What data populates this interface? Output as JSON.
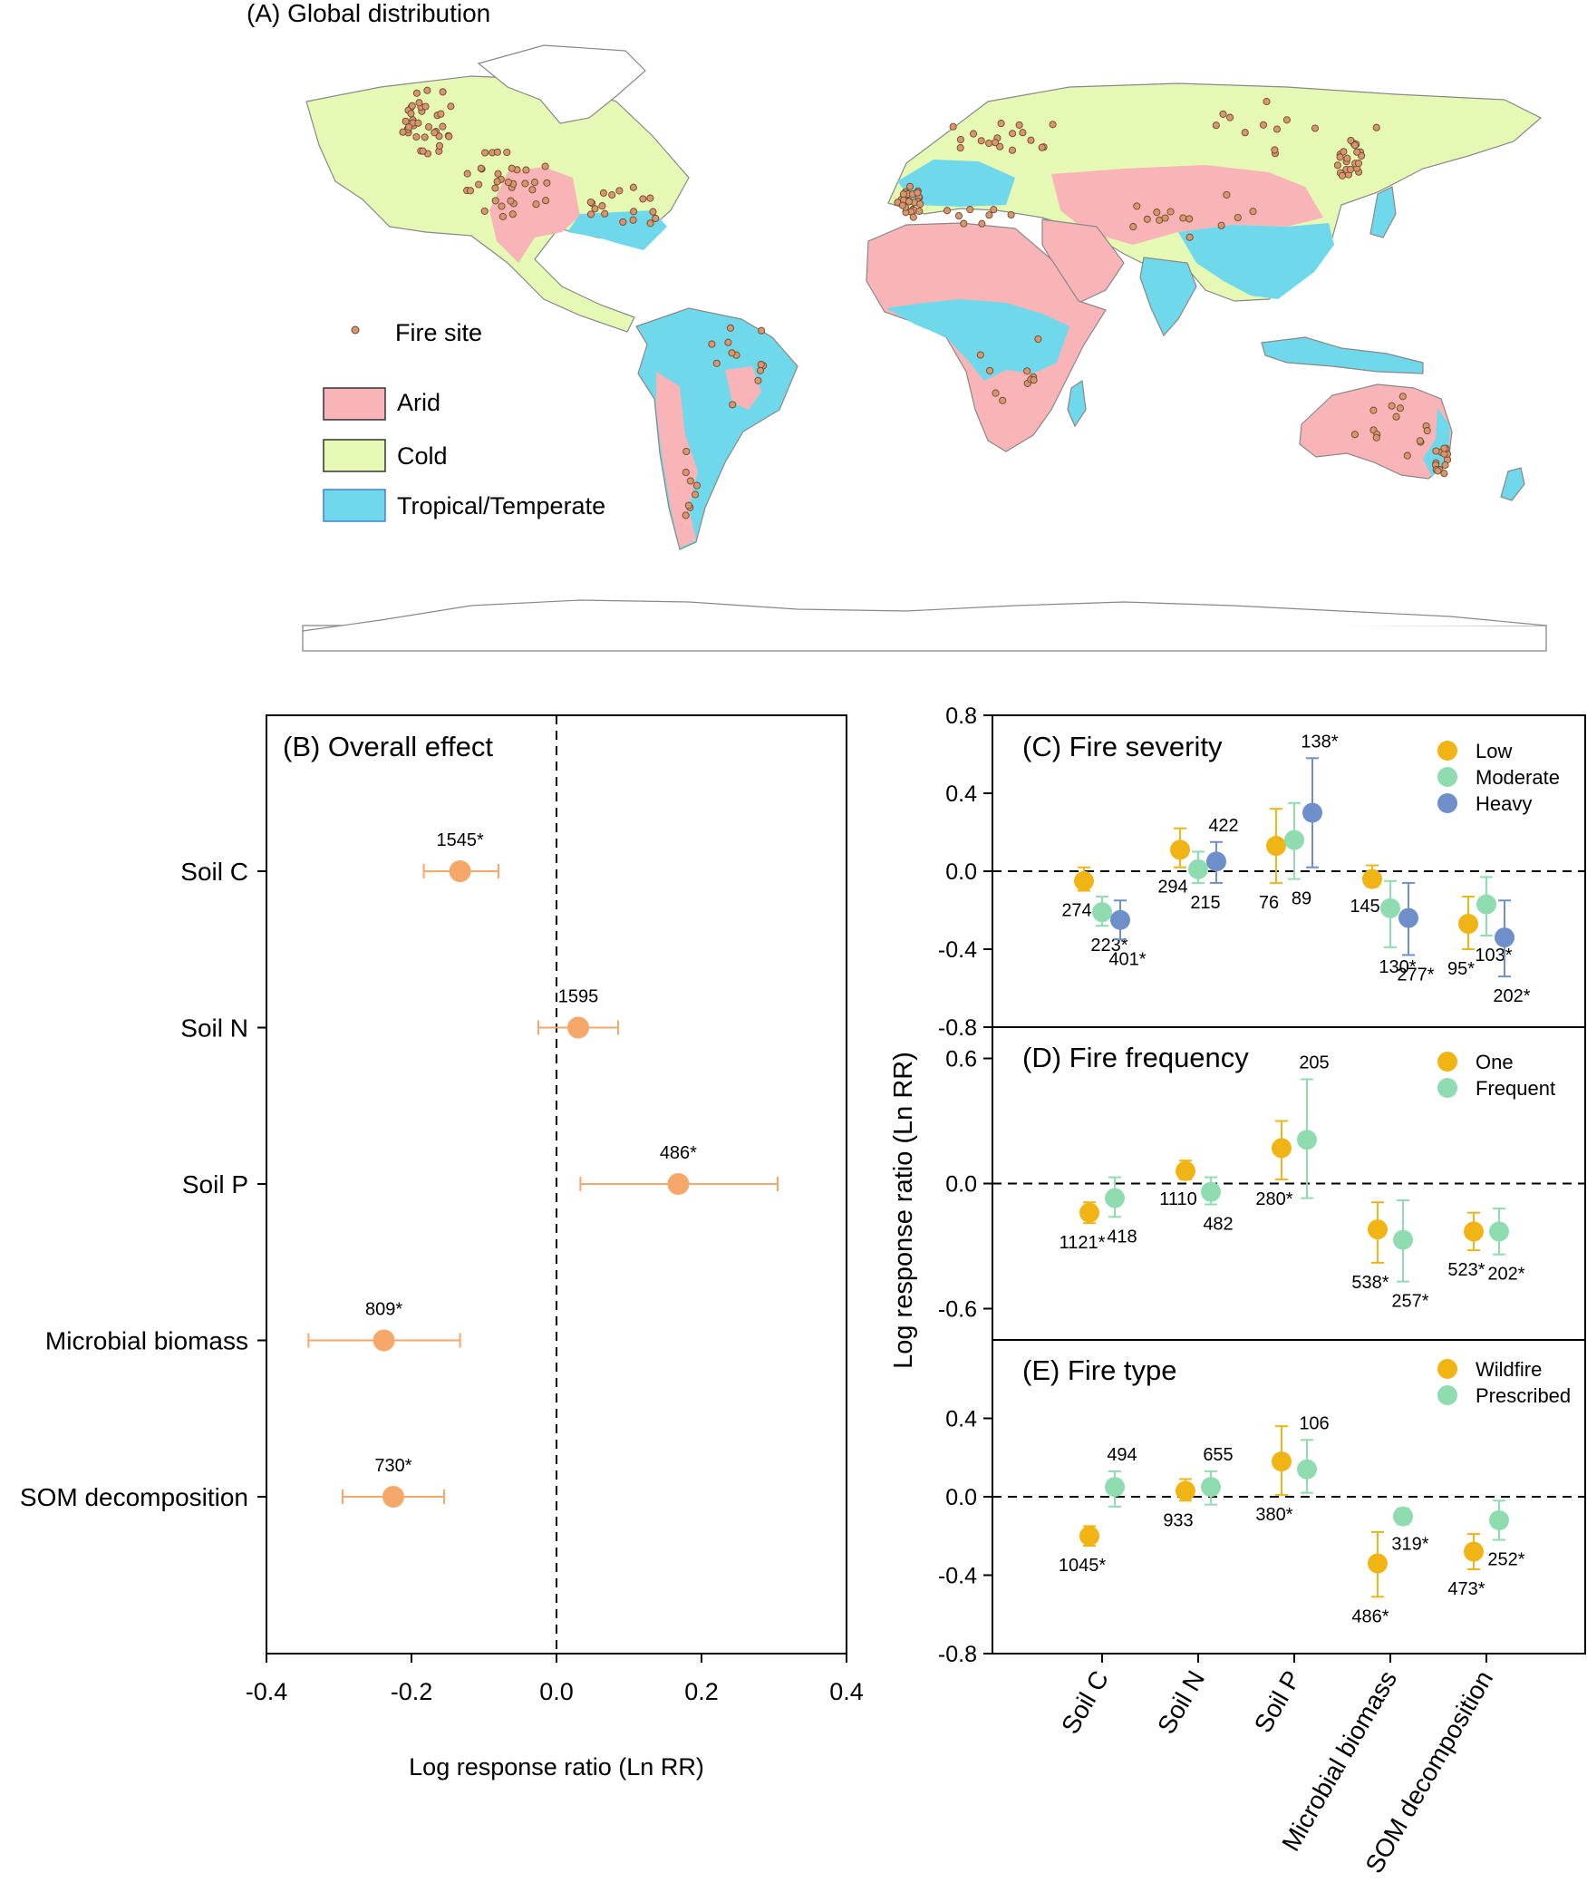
{
  "colors": {
    "arid": "#f9b4b8",
    "cold": "#e6f9b4",
    "tropical": "#6fd8ea",
    "fire_dot": "#d9956c",
    "overall_point": "#f6a76a",
    "low": "#f0b414",
    "moderate": "#8edcb0",
    "heavy": "#6f8fca"
  },
  "map": {
    "title": "(A) Global distribution",
    "legend": {
      "fire_site": "Fire site",
      "arid": "Arid",
      "cold": "Cold",
      "tropical": "Tropical/Temperate"
    }
  },
  "chart_data": [
    {
      "panel": "B",
      "type": "scatter",
      "title": "(B) Overall effect",
      "xlabel": "Log response ratio (Ln RR)",
      "xlim": [
        -0.4,
        0.4
      ],
      "xticks": [
        "-0.4",
        "-0.2",
        "0.0",
        "0.2",
        "0.4"
      ],
      "categories": [
        "Soil C",
        "Soil N",
        "Soil P",
        "Microbial biomass",
        "SOM decomposition"
      ],
      "series": [
        {
          "name": "Overall",
          "values": [
            -0.133,
            0.03,
            0.168,
            -0.238,
            -0.225
          ],
          "lower": [
            -0.183,
            -0.025,
            0.033,
            -0.342,
            -0.295
          ],
          "upper": [
            -0.08,
            0.085,
            0.305,
            -0.133,
            -0.155
          ],
          "labels": [
            "1545*",
            "1595",
            "486*",
            "809*",
            "730*"
          ]
        }
      ]
    },
    {
      "panel": "C",
      "type": "scatter",
      "title": "(C) Fire severity",
      "ylim": [
        -0.8,
        0.8
      ],
      "yticks": [
        "0.8",
        "0.4",
        "0.0",
        "-0.4",
        "-0.8"
      ],
      "categories": [
        "Soil C",
        "Soil N",
        "Soil P",
        "Microbial biomass",
        "SOM decomposition"
      ],
      "series": [
        {
          "name": "Low",
          "values": [
            -0.05,
            0.11,
            0.13,
            -0.04,
            -0.27
          ],
          "lower": [
            -0.1,
            0.02,
            -0.06,
            -0.08,
            -0.4
          ],
          "upper": [
            0.02,
            0.22,
            0.32,
            0.03,
            -0.13
          ],
          "labels": [
            "274",
            "294",
            "76",
            "145",
            "95*"
          ]
        },
        {
          "name": "Moderate",
          "values": [
            -0.21,
            0.01,
            0.16,
            -0.19,
            -0.17
          ],
          "lower": [
            -0.28,
            -0.06,
            -0.04,
            -0.39,
            -0.33
          ],
          "upper": [
            -0.13,
            0.1,
            0.35,
            -0.05,
            -0.03
          ],
          "labels": [
            "223*",
            "215",
            "89",
            "130*",
            "103*"
          ]
        },
        {
          "name": "Heavy",
          "values": [
            -0.25,
            0.05,
            0.3,
            -0.24,
            -0.34
          ],
          "lower": [
            -0.35,
            -0.06,
            0.02,
            -0.43,
            -0.54
          ],
          "upper": [
            -0.15,
            0.15,
            0.58,
            -0.06,
            -0.15
          ],
          "labels": [
            "401*",
            "422",
            "138*",
            "277*",
            "202*"
          ]
        }
      ]
    },
    {
      "panel": "D",
      "type": "scatter",
      "title": "(D) Fire frequency",
      "ylim": [
        -0.75,
        0.75
      ],
      "yticks": [
        "0.6",
        "0.0",
        "-0.6"
      ],
      "categories": [
        "Soil C",
        "Soil N",
        "Soil P",
        "Microbial biomass",
        "SOM decomposition"
      ],
      "series": [
        {
          "name": "One",
          "values": [
            -0.14,
            0.06,
            0.17,
            -0.22,
            -0.23
          ],
          "lower": [
            -0.19,
            0.02,
            0.02,
            -0.38,
            -0.32
          ],
          "upper": [
            -0.09,
            0.11,
            0.3,
            -0.09,
            -0.14
          ],
          "labels": [
            "1121*",
            "1110",
            "280*",
            "538*",
            "523*"
          ]
        },
        {
          "name": "Frequent",
          "values": [
            -0.07,
            -0.04,
            0.21,
            -0.27,
            -0.23
          ],
          "lower": [
            -0.16,
            -0.1,
            -0.07,
            -0.47,
            -0.34
          ],
          "upper": [
            0.03,
            0.03,
            0.5,
            -0.08,
            -0.12
          ],
          "labels": [
            "418",
            "482",
            "205",
            "257*",
            "202*"
          ]
        }
      ]
    },
    {
      "panel": "E",
      "type": "scatter",
      "title": "(E) Fire type",
      "ylim": [
        -0.8,
        0.8
      ],
      "yticks": [
        "0.4",
        "0.0",
        "-0.4",
        "-0.8"
      ],
      "categories": [
        "Soil C",
        "Soil N",
        "Soil P",
        "Microbial biomass",
        "SOM decomposition"
      ],
      "series": [
        {
          "name": "Wildfire",
          "values": [
            -0.2,
            0.03,
            0.18,
            -0.34,
            -0.28
          ],
          "lower": [
            -0.25,
            -0.02,
            0.01,
            -0.51,
            -0.37
          ],
          "upper": [
            -0.15,
            0.09,
            0.36,
            -0.18,
            -0.19
          ],
          "labels": [
            "1045*",
            "933",
            "380*",
            "486*",
            "473*"
          ]
        },
        {
          "name": "Prescribed",
          "values": [
            0.05,
            0.05,
            0.14,
            -0.1,
            -0.12
          ],
          "lower": [
            -0.05,
            -0.04,
            0.02,
            -0.14,
            -0.22
          ],
          "upper": [
            0.13,
            0.13,
            0.29,
            -0.06,
            -0.02
          ],
          "labels": [
            "494",
            "655",
            "106",
            "319*",
            "252*"
          ]
        }
      ]
    }
  ],
  "shared_ylabel": "Log response ratio (Ln RR)"
}
